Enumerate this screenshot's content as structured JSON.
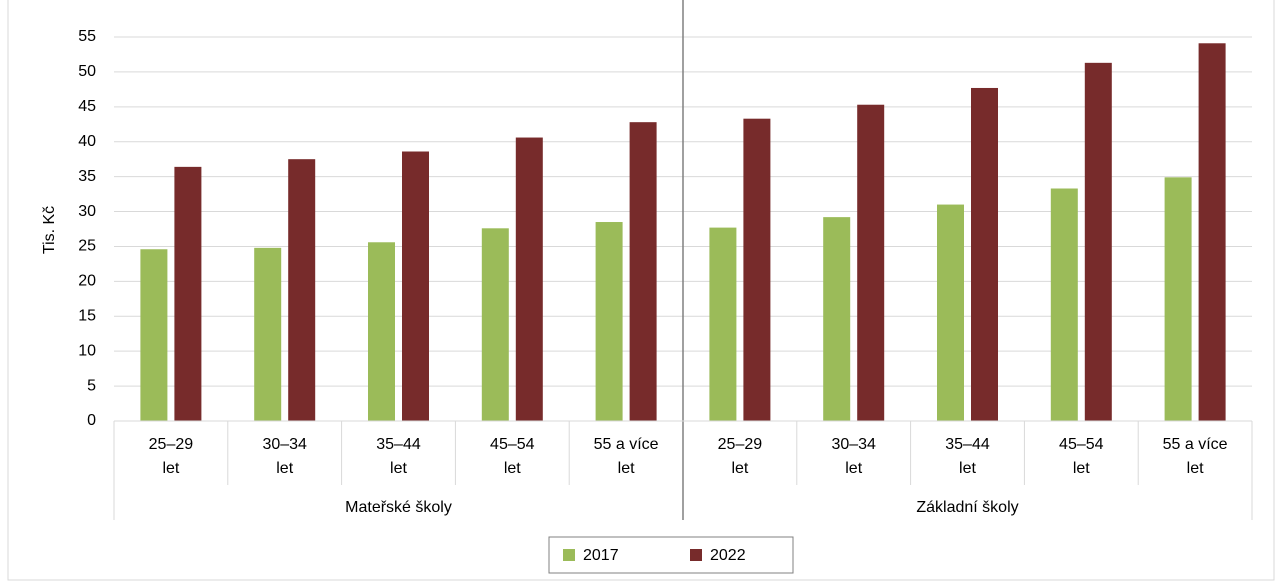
{
  "chart_data": {
    "type": "bar",
    "y_label": "Tis. Kč",
    "categories": [
      "25–29\nlet",
      "30–34\nlet",
      "35–44\nlet",
      "45–54\nlet",
      "55 a více\nlet",
      "25–29\nlet",
      "30–34\nlet",
      "35–44\nlet",
      "45–54\nlet",
      "55 a více\nlet"
    ],
    "groups": [
      {
        "name": "Mateřské školy",
        "size": 5
      },
      {
        "name": "Základní školy",
        "size": 5
      }
    ],
    "series": [
      {
        "name": "2017",
        "color": "#9bbb59",
        "values": [
          24.6,
          24.8,
          25.6,
          27.6,
          28.5,
          27.7,
          29.2,
          31.0,
          33.3,
          34.9
        ]
      },
      {
        "name": "2022",
        "color": "#772b2b",
        "values": [
          36.4,
          37.5,
          38.6,
          40.6,
          42.8,
          43.3,
          45.3,
          47.7,
          51.3,
          54.1
        ]
      }
    ],
    "ylim": [
      0,
      55
    ],
    "yticks": [
      0,
      5,
      10,
      15,
      20,
      25,
      30,
      35,
      40,
      45,
      50,
      55
    ],
    "grid": true,
    "legend": "bottom"
  }
}
